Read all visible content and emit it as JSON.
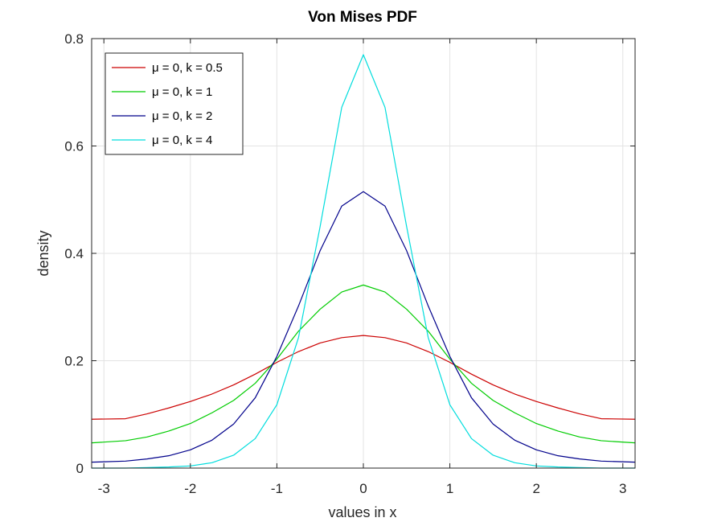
{
  "chart_data": {
    "type": "line",
    "title": "Von Mises PDF",
    "xlabel": "values in x",
    "ylabel": "density",
    "xlim": [
      -3.1416,
      3.1416
    ],
    "ylim": [
      0,
      0.8
    ],
    "xticks": [
      -3,
      -2,
      -1,
      0,
      1,
      2,
      3
    ],
    "yticks": [
      0,
      0.2,
      0.4,
      0.6,
      0.8
    ],
    "xtick_labels": [
      "-3",
      "-2",
      "-1",
      "0",
      "1",
      "2",
      "3"
    ],
    "ytick_labels": [
      "0",
      "0.2",
      "0.4",
      "0.6",
      "0.8"
    ],
    "grid": true,
    "legend_position": "top-left",
    "x": [
      -3.1416,
      -2.75,
      -2.5,
      -2.25,
      -2.0,
      -1.75,
      -1.5,
      -1.25,
      -1.0,
      -0.75,
      -0.5,
      -0.25,
      0,
      0.25,
      0.5,
      0.75,
      1.0,
      1.25,
      1.5,
      1.75,
      2.0,
      2.25,
      2.5,
      2.75,
      3.1416
    ],
    "series": [
      {
        "name": "μ = 0, k = 0.5",
        "color": "#cc0000",
        "values": [
          0.091,
          0.092,
          0.101,
          0.112,
          0.124,
          0.138,
          0.155,
          0.175,
          0.197,
          0.217,
          0.233,
          0.243,
          0.247,
          0.243,
          0.233,
          0.217,
          0.197,
          0.175,
          0.155,
          0.138,
          0.124,
          0.112,
          0.101,
          0.092,
          0.091
        ]
      },
      {
        "name": "μ = 0, k = 1",
        "color": "#00cc00",
        "values": [
          0.047,
          0.051,
          0.058,
          0.069,
          0.083,
          0.103,
          0.126,
          0.158,
          0.203,
          0.255,
          0.296,
          0.328,
          0.341,
          0.328,
          0.296,
          0.255,
          0.203,
          0.158,
          0.126,
          0.103,
          0.083,
          0.069,
          0.058,
          0.051,
          0.047
        ]
      },
      {
        "name": "μ = 0, k = 2",
        "color": "#00008b",
        "values": [
          0.011,
          0.013,
          0.017,
          0.023,
          0.034,
          0.052,
          0.082,
          0.131,
          0.208,
          0.302,
          0.405,
          0.488,
          0.515,
          0.488,
          0.405,
          0.302,
          0.208,
          0.131,
          0.082,
          0.052,
          0.034,
          0.023,
          0.017,
          0.013,
          0.011
        ]
      },
      {
        "name": "μ = 0, k = 4",
        "color": "#00dddd",
        "values": [
          0.0,
          0.0,
          0.001,
          0.002,
          0.004,
          0.01,
          0.024,
          0.055,
          0.118,
          0.243,
          0.45,
          0.672,
          0.77,
          0.672,
          0.45,
          0.243,
          0.118,
          0.055,
          0.024,
          0.01,
          0.004,
          0.002,
          0.001,
          0.0,
          0.0
        ]
      }
    ]
  }
}
